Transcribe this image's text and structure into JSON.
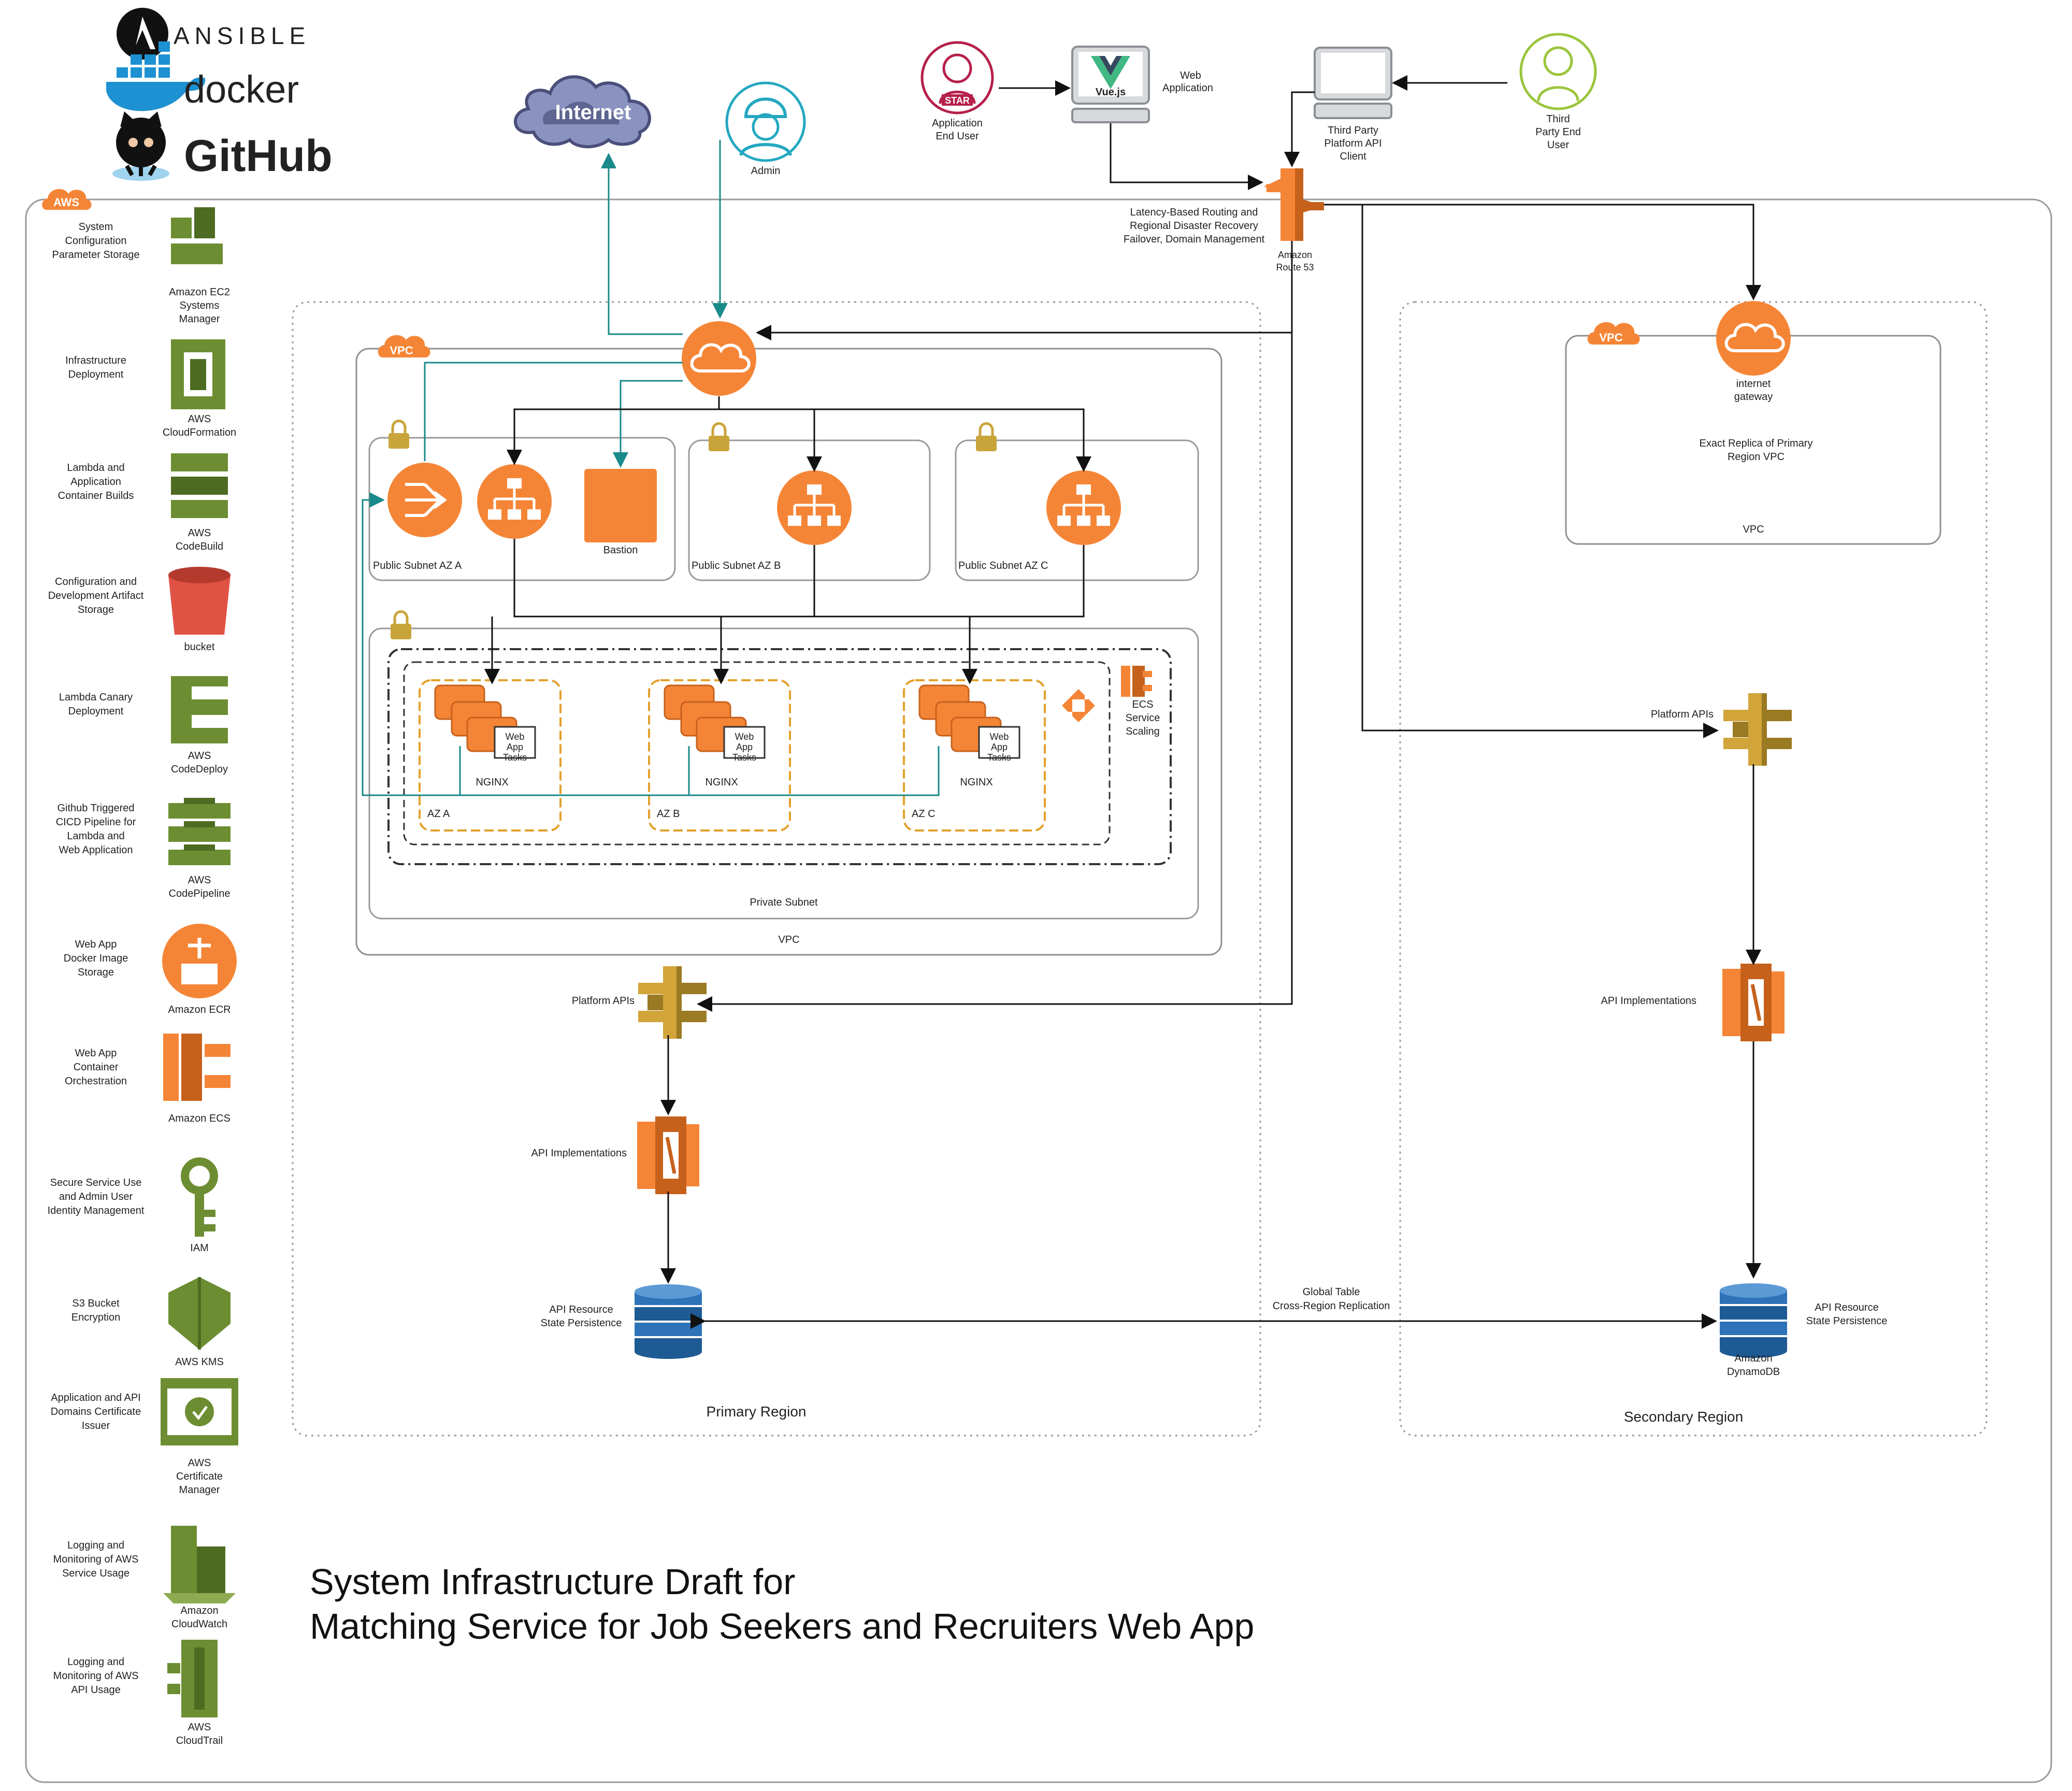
{
  "brands": {
    "ansible": "ANSIBLE",
    "docker": "docker",
    "github": "GitHub",
    "aws_badge": "AWS",
    "internet": "Internet",
    "vue": "Vue.js",
    "star": "STAR"
  },
  "colors": {
    "orange": "#f58536",
    "aws_green": "#6d8d32",
    "gold": "#d2a53a",
    "blue": "#2e73b8",
    "red": "#e05243",
    "teal": "#1a8a8a"
  },
  "sidebar": [
    {
      "desc": [
        "System",
        "Configuration",
        "Parameter Storage"
      ],
      "name": [
        "Amazon EC2",
        "Systems",
        "Manager"
      ],
      "icon": "ssm-icon"
    },
    {
      "desc": [
        "Infrastructure",
        "Deployment"
      ],
      "name": [
        "AWS",
        "CloudFormation"
      ],
      "icon": "cloudformation-icon"
    },
    {
      "desc": [
        "Lambda and",
        "Application",
        "Container Builds"
      ],
      "name": [
        "AWS",
        "CodeBuild"
      ],
      "icon": "codebuild-icon"
    },
    {
      "desc": [
        "Configuration and",
        "Development Artifact",
        "Storage"
      ],
      "name": [
        "bucket"
      ],
      "icon": "s3-bucket-icon"
    },
    {
      "desc": [
        "Lambda Canary",
        "Deployment"
      ],
      "name": [
        "AWS",
        "CodeDeploy"
      ],
      "icon": "codedeploy-icon"
    },
    {
      "desc": [
        "Github Triggered",
        "CICD Pipeline for",
        "Lambda and",
        "Web Application"
      ],
      "name": [
        "AWS",
        "CodePipeline"
      ],
      "icon": "codepipeline-icon"
    },
    {
      "desc": [
        "Web App",
        "Docker Image",
        "Storage"
      ],
      "name": [
        "Amazon ECR"
      ],
      "icon": "ecr-icon"
    },
    {
      "desc": [
        "Web App",
        "Container",
        "Orchestration"
      ],
      "name": [
        "Amazon ECS"
      ],
      "icon": "ecs-icon"
    },
    {
      "desc": [
        "Secure Service Use",
        "and Admin User",
        "Identity Management"
      ],
      "name": [
        "IAM"
      ],
      "icon": "iam-icon"
    },
    {
      "desc": [
        "S3 Bucket",
        "Encryption"
      ],
      "name": [
        "AWS KMS"
      ],
      "icon": "kms-icon"
    },
    {
      "desc": [
        "Application and API",
        "Domains Certificate",
        "Issuer"
      ],
      "name": [
        "AWS",
        "Certificate",
        "Manager"
      ],
      "icon": "acm-icon"
    },
    {
      "desc": [
        "Logging and",
        "Monitoring of AWS",
        "Service Usage"
      ],
      "name": [
        "Amazon",
        "CloudWatch"
      ],
      "icon": "cloudwatch-icon"
    },
    {
      "desc": [
        "Logging and",
        "Monitoring of AWS",
        "API Usage"
      ],
      "name": [
        "AWS",
        "CloudTrail"
      ],
      "icon": "cloudtrail-icon"
    }
  ],
  "actors": {
    "admin": "Admin",
    "app_end_user": [
      "Application",
      "End User"
    ],
    "web_application": [
      "Web",
      "Application"
    ],
    "third_party_client": [
      "Third Party",
      "Platform API",
      "Client"
    ],
    "third_party_end_user": [
      "Third",
      "Party End",
      "User"
    ]
  },
  "route53": {
    "name": [
      "Amazon",
      "Route 53"
    ],
    "desc": [
      "Latency-Based Routing and",
      "Regional Disaster Recovery",
      "Failover, Domain Management"
    ]
  },
  "primary": {
    "vpc_badge": "VPC",
    "vpc_label": "VPC",
    "region_label": "Primary Region",
    "subnets": [
      "Public Subnet AZ A",
      "Public Subnet AZ B",
      "Public Subnet AZ C"
    ],
    "bastion": "Bastion",
    "private_subnet": "Private Subnet",
    "az_labels": [
      "AZ A",
      "AZ B",
      "AZ C"
    ],
    "nginx": "NGINX",
    "task_label": [
      "Web",
      "App",
      "Tasks"
    ],
    "ecs_scaling": [
      "ECS",
      "Service",
      "Scaling"
    ],
    "platform_apis": "Platform APIs",
    "api_impl": "API Implementations",
    "api_state": [
      "API Resource",
      "State Persistence"
    ]
  },
  "secondary": {
    "vpc_badge": "VPC",
    "igw": [
      "internet",
      "gateway"
    ],
    "replica": [
      "Exact Replica of Primary",
      "Region VPC"
    ],
    "vpc_label": "VPC",
    "platform_apis": "Platform APIs",
    "api_impl": "API Implementations",
    "api_state": [
      "API Resource",
      "State Persistence"
    ],
    "dynamodb": [
      "Amazon",
      "DynamoDB"
    ],
    "region_label": "Secondary Region"
  },
  "replication": [
    "Global Table",
    "Cross-Region Replication"
  ],
  "title": [
    "System Infrastructure Draft for",
    "Matching Service for Job Seekers and Recruiters Web App"
  ]
}
